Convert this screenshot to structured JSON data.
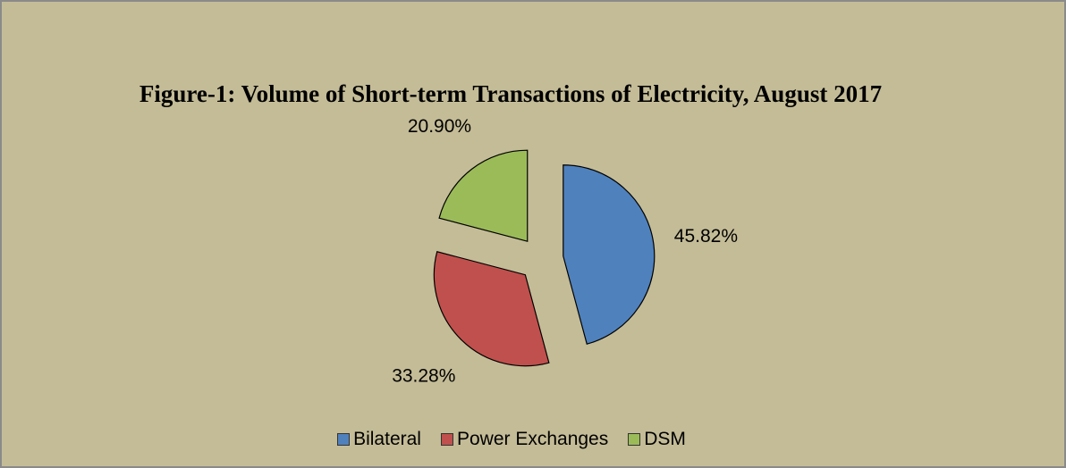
{
  "chart_data": {
    "type": "pie",
    "title": "Figure-1: Volume of Short-term Transactions of Electricity, August 2017",
    "labels": [
      "Bilateral",
      "Power Exchanges",
      "DSM"
    ],
    "values": [
      45.82,
      33.28,
      20.9
    ],
    "value_labels": [
      "45.82%",
      "33.28%",
      "20.90%"
    ],
    "colors": [
      "#4f81bd",
      "#c0504d",
      "#9bbb59"
    ],
    "exploded": true,
    "legend": "bottom"
  }
}
